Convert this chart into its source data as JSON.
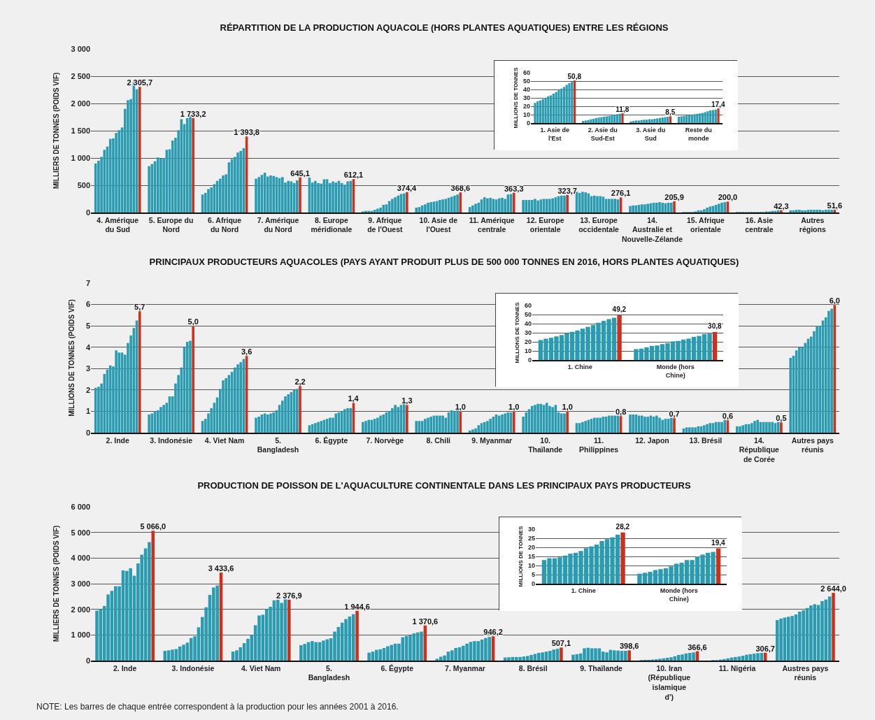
{
  "chart_data": [
    {
      "type": "bar",
      "title": "RÉPARTITION DE LA PRODUCTION AQUACOLE (HORS PLANTES AQUATIQUES) ENTRE LES RÉGIONS",
      "ylabel": "MILLIERS DE TONNES (POIDS VIF)",
      "grid": "y",
      "categories": [
        "4. Amérique du Sud",
        "5. Europe du Nord",
        "6. Afrique du Nord",
        "7. Amérique du Nord",
        "8. Europe méridionale",
        "9. Afrique de l'Ouest",
        "10. Asie de l'Ouest",
        "11. Amérique centrale",
        "12. Europe orientale",
        "13. Europe occidentale",
        "14. Australie et Nouvelle-Zélande",
        "15. Afrique orientale",
        "16. Asie centrale",
        "Autres régions"
      ],
      "ylim": [
        0,
        3000
      ],
      "yticks": [
        0,
        500,
        {
          "value": 1000,
          "label": "1 000"
        },
        {
          "value": 1500,
          "label": "1 500"
        },
        {
          "value": 2000,
          "label": "2 000"
        },
        {
          "value": 2500,
          "label": "2 500"
        },
        {
          "value": 3000,
          "label": "3 000"
        }
      ],
      "series": [
        {
          "color": "#2a9bb0",
          "values": [
            900,
            850,
            330,
            620,
            640,
            20,
            90,
            100,
            230,
            380,
            120,
            10,
            10,
            40
          ]
        },
        {
          "color": "#2a9bb0",
          "values": [
            950,
            890,
            360,
            650,
            550,
            30,
            100,
            130,
            230,
            360,
            130,
            10,
            10,
            40
          ]
        },
        {
          "color": "#2a9bb0",
          "values": [
            1020,
            940,
            430,
            690,
            580,
            30,
            130,
            160,
            230,
            380,
            130,
            10,
            10,
            50
          ]
        },
        {
          "color": "#2a9bb0",
          "values": [
            1150,
            1010,
            460,
            730,
            540,
            30,
            150,
            180,
            230,
            370,
            140,
            10,
            10,
            50
          ]
        },
        {
          "color": "#2a9bb0",
          "values": [
            1210,
            990,
            520,
            660,
            530,
            50,
            180,
            240,
            250,
            350,
            150,
            20,
            10,
            40
          ]
        },
        {
          "color": "#2a9bb0",
          "values": [
            1350,
            1000,
            580,
            680,
            610,
            70,
            190,
            280,
            220,
            300,
            150,
            40,
            10,
            40
          ]
        },
        {
          "color": "#2a9bb0",
          "values": [
            1360,
            1150,
            620,
            670,
            610,
            90,
            200,
            260,
            240,
            310,
            160,
            40,
            10,
            50
          ]
        },
        {
          "color": "#2a9bb0",
          "values": [
            1460,
            1160,
            680,
            650,
            540,
            140,
            210,
            270,
            250,
            300,
            170,
            60,
            10,
            50
          ]
        },
        {
          "color": "#2a9bb0",
          "values": [
            1510,
            1320,
            700,
            630,
            570,
            150,
            230,
            250,
            250,
            300,
            180,
            90,
            10,
            50
          ]
        },
        {
          "color": "#2a9bb0",
          "values": [
            1560,
            1370,
            920,
            650,
            550,
            210,
            240,
            240,
            250,
            290,
            180,
            110,
            10,
            50
          ]
        },
        {
          "color": "#2a9bb0",
          "values": [
            1900,
            1510,
            980,
            550,
            580,
            250,
            250,
            260,
            260,
            250,
            190,
            120,
            20,
            50
          ]
        },
        {
          "color": "#2a9bb0",
          "values": [
            2060,
            1710,
            1020,
            580,
            540,
            280,
            270,
            270,
            280,
            250,
            180,
            140,
            20,
            40
          ]
        },
        {
          "color": "#2a9bb0",
          "values": [
            2080,
            1620,
            1100,
            570,
            510,
            310,
            290,
            250,
            300,
            250,
            170,
            160,
            30,
            50
          ]
        },
        {
          "color": "#2a9bb0",
          "values": [
            2390,
            1730,
            1130,
            540,
            570,
            340,
            310,
            330,
            310,
            250,
            180,
            180,
            30,
            50
          ]
        },
        {
          "color": "#2a9bb0",
          "values": [
            2260,
            1780,
            1180,
            590,
            580,
            350,
            330,
            340,
            310,
            240,
            180,
            190,
            40,
            50
          ]
        },
        {
          "color": "#c8321e",
          "values": [
            2305.7,
            1733.2,
            1393.8,
            645.1,
            612.1,
            374.4,
            368.6,
            363.3,
            323.7,
            276.1,
            205.9,
            200.0,
            42.3,
            51.6
          ],
          "value_labels": [
            "2 305,7",
            "1 733,2",
            "1 393,8",
            "645,1",
            "612,1",
            "374,4",
            "368,6",
            "363,3",
            "323,7",
            "276,1",
            "205,9",
            "200,0",
            "42,3",
            "51,6"
          ]
        }
      ]
    },
    {
      "type": "bar",
      "ylabel": "MILLIONS DE TONNES",
      "grid": "y",
      "categories": [
        "1. Asie de l'Est",
        "2. Asie du Sud-Est",
        "3. Asie du Sud",
        "Reste du monde"
      ],
      "ylim": [
        0,
        60
      ],
      "yticks": [
        0,
        10,
        20,
        30,
        40,
        50,
        60
      ],
      "series": [
        {
          "color": "#2a9bb0",
          "values": [
            24,
            2.5,
            2,
            7.5
          ]
        },
        {
          "color": "#2a9bb0",
          "values": [
            26,
            3,
            2.5,
            8
          ]
        },
        {
          "color": "#2a9bb0",
          "values": [
            27,
            3.5,
            3,
            8.5
          ]
        },
        {
          "color": "#2a9bb0",
          "values": [
            28.5,
            4.5,
            3,
            9
          ]
        },
        {
          "color": "#2a9bb0",
          "values": [
            30,
            5,
            3.5,
            9.5
          ]
        },
        {
          "color": "#2a9bb0",
          "values": [
            32,
            6,
            4,
            10
          ]
        },
        {
          "color": "#2a9bb0",
          "values": [
            33,
            6.5,
            4,
            10.5
          ]
        },
        {
          "color": "#2a9bb0",
          "values": [
            35,
            7,
            4.5,
            11
          ]
        },
        {
          "color": "#2a9bb0",
          "values": [
            37,
            7.5,
            4.5,
            11.5
          ]
        },
        {
          "color": "#2a9bb0",
          "values": [
            39,
            8,
            5,
            12
          ]
        },
        {
          "color": "#2a9bb0",
          "values": [
            41,
            8.5,
            5.5,
            13
          ]
        },
        {
          "color": "#2a9bb0",
          "values": [
            43,
            9,
            6,
            14
          ]
        },
        {
          "color": "#2a9bb0",
          "values": [
            45.5,
            10,
            6.5,
            15
          ]
        },
        {
          "color": "#2a9bb0",
          "values": [
            47.5,
            10.5,
            7,
            15.5
          ]
        },
        {
          "color": "#2a9bb0",
          "values": [
            49,
            11,
            7.5,
            16
          ]
        },
        {
          "color": "#c8321e",
          "values": [
            50.8,
            11.8,
            8.5,
            17.4
          ],
          "value_labels": [
            "50,8",
            "11,8",
            "8,5",
            "17,4"
          ]
        }
      ]
    },
    {
      "type": "bar",
      "title": "PRINCIPAUX PRODUCTEURS AQUACOLES (PAYS AYANT PRODUIT PLUS DE 500 000 TONNES EN 2016, HORS PLANTES AQUATIQUES)",
      "ylabel": "MILLIONS DE TONNES (POIDS VIF)",
      "grid": "y",
      "categories": [
        "2. Inde",
        "3. Indonésie",
        "4. Viet Nam",
        "5. Bangladesh",
        "6. Égypte",
        "7. Norvège",
        "8. Chili",
        "9. Myanmar",
        "10. Thaïlande",
        "11. Philippines",
        "12. Japon",
        "13. Brésil",
        "14. République de Corée",
        "Autres pays réunis"
      ],
      "ylim": [
        0,
        7
      ],
      "yticks": [
        0,
        1,
        2,
        3,
        4,
        5,
        6,
        7
      ],
      "series": [
        {
          "color": "#2a9bb0",
          "values": [
            2.1,
            0.85,
            0.55,
            0.7,
            0.35,
            0.5,
            0.55,
            0.1,
            0.75,
            0.45,
            0.85,
            0.2,
            0.3,
            3.5
          ]
        },
        {
          "color": "#2a9bb0",
          "values": [
            2.15,
            0.9,
            0.65,
            0.75,
            0.4,
            0.55,
            0.55,
            0.15,
            0.95,
            0.45,
            0.85,
            0.25,
            0.3,
            3.6
          ]
        },
        {
          "color": "#2a9bb0",
          "values": [
            2.3,
            1.0,
            0.9,
            0.85,
            0.45,
            0.6,
            0.55,
            0.2,
            1.1,
            0.5,
            0.85,
            0.25,
            0.35,
            3.85
          ]
        },
        {
          "color": "#2a9bb0",
          "values": [
            2.75,
            1.05,
            1.15,
            0.9,
            0.5,
            0.6,
            0.65,
            0.35,
            1.25,
            0.55,
            0.8,
            0.25,
            0.4,
            4.0
          ]
        },
        {
          "color": "#2a9bb0",
          "values": [
            2.95,
            1.2,
            1.4,
            0.85,
            0.55,
            0.65,
            0.7,
            0.45,
            1.3,
            0.6,
            0.8,
            0.25,
            0.4,
            4.0
          ]
        },
        {
          "color": "#2a9bb0",
          "values": [
            3.15,
            1.3,
            1.65,
            0.9,
            0.6,
            0.7,
            0.75,
            0.5,
            1.35,
            0.65,
            0.75,
            0.3,
            0.45,
            4.2
          ]
        },
        {
          "color": "#2a9bb0",
          "values": [
            3.1,
            1.4,
            2.05,
            0.95,
            0.65,
            0.8,
            0.8,
            0.55,
            1.35,
            0.7,
            0.75,
            0.3,
            0.55,
            4.4
          ]
        },
        {
          "color": "#2a9bb0",
          "values": [
            3.85,
            1.7,
            2.45,
            1.05,
            0.7,
            0.85,
            0.8,
            0.65,
            1.3,
            0.7,
            0.8,
            0.35,
            0.6,
            4.5
          ]
        },
        {
          "color": "#2a9bb0",
          "values": [
            3.75,
            1.7,
            2.55,
            1.3,
            0.7,
            0.95,
            0.8,
            0.75,
            1.4,
            0.7,
            0.75,
            0.4,
            0.5,
            4.75
          ]
        },
        {
          "color": "#2a9bb0",
          "values": [
            3.75,
            2.3,
            2.7,
            1.5,
            0.9,
            1.0,
            0.8,
            0.85,
            1.25,
            0.75,
            0.8,
            0.45,
            0.5,
            5.0
          ]
        },
        {
          "color": "#2a9bb0",
          "values": [
            3.65,
            2.7,
            2.85,
            1.7,
            0.95,
            1.15,
            0.7,
            0.8,
            1.2,
            0.75,
            0.7,
            0.45,
            0.5,
            5.0
          ]
        },
        {
          "color": "#2a9bb0",
          "values": [
            4.2,
            3.05,
            3.05,
            1.8,
            1.0,
            1.3,
            0.95,
            0.85,
            1.3,
            0.8,
            0.6,
            0.5,
            0.5,
            5.25
          ]
        },
        {
          "color": "#2a9bb0",
          "values": [
            4.55,
            4.0,
            3.2,
            1.9,
            1.1,
            1.2,
            1.05,
            0.9,
            0.95,
            0.8,
            0.65,
            0.5,
            0.5,
            5.4
          ]
        },
        {
          "color": "#2a9bb0",
          "values": [
            4.9,
            4.25,
            3.3,
            2.0,
            1.15,
            1.3,
            1.0,
            0.95,
            0.9,
            0.8,
            0.65,
            0.5,
            0.45,
            5.7
          ]
        },
        {
          "color": "#2a9bb0",
          "values": [
            5.25,
            4.3,
            3.45,
            2.05,
            1.15,
            1.35,
            1.2,
            0.95,
            0.9,
            0.8,
            0.7,
            0.6,
            0.5,
            5.8
          ]
        },
        {
          "color": "#c8321e",
          "values": [
            5.7,
            5.0,
            3.6,
            2.2,
            1.4,
            1.3,
            1.0,
            1.0,
            1.0,
            0.8,
            0.7,
            0.6,
            0.5,
            6.0
          ],
          "value_labels": [
            "5,7",
            "5,0",
            "3,6",
            "2,2",
            "1,4",
            "1,3",
            "1,0",
            "1,0",
            "1,0",
            "0,8",
            "0,7",
            "0,6",
            "0,5",
            "6,0"
          ]
        }
      ]
    },
    {
      "type": "bar",
      "ylabel": "MILLIONS DE TONNES",
      "grid": "y",
      "categories": [
        "1. Chine",
        "Monde (hors Chine)"
      ],
      "ylim": [
        0,
        60
      ],
      "yticks": [
        0,
        10,
        20,
        30,
        40,
        50,
        60
      ],
      "series": [
        {
          "color": "#2a9bb0",
          "values": [
            22,
            12
          ]
        },
        {
          "color": "#2a9bb0",
          "values": [
            23.5,
            12.5
          ]
        },
        {
          "color": "#2a9bb0",
          "values": [
            24.5,
            14
          ]
        },
        {
          "color": "#2a9bb0",
          "values": [
            26,
            15.5
          ]
        },
        {
          "color": "#2a9bb0",
          "values": [
            27.5,
            16
          ]
        },
        {
          "color": "#2a9bb0",
          "values": [
            29.5,
            17.5
          ]
        },
        {
          "color": "#2a9bb0",
          "values": [
            31,
            18.5
          ]
        },
        {
          "color": "#2a9bb0",
          "values": [
            32.5,
            20.5
          ]
        },
        {
          "color": "#2a9bb0",
          "values": [
            34.5,
            21
          ]
        },
        {
          "color": "#2a9bb0",
          "values": [
            36.5,
            22.5
          ]
        },
        {
          "color": "#2a9bb0",
          "values": [
            38.5,
            23.5
          ]
        },
        {
          "color": "#2a9bb0",
          "values": [
            41,
            25.5
          ]
        },
        {
          "color": "#2a9bb0",
          "values": [
            43,
            26.5
          ]
        },
        {
          "color": "#2a9bb0",
          "values": [
            45,
            28.5
          ]
        },
        {
          "color": "#2a9bb0",
          "values": [
            46.5,
            29
          ]
        },
        {
          "color": "#c8321e",
          "values": [
            49.2,
            30.8
          ],
          "value_labels": [
            "49,2",
            "30,8"
          ]
        }
      ]
    },
    {
      "type": "bar",
      "title": "PRODUCTION DE POISSON DE L'AQUACULTURE CONTINENTALE DANS LES PRINCIPAUX PAYS PRODUCTEURS",
      "ylabel": "MILLIERS DE TONNES (POIDS VIF)",
      "grid": "y",
      "categories": [
        "2. Inde",
        "3. Indonésie",
        "4. Viet Nam",
        "5. Bangladesh",
        "6. Égypte",
        "7. Myanmar",
        "8. Brésil",
        "9. Thaïlande",
        "10. Iran (République islamique d')",
        "11. Nigéria",
        "Austres pays réunis"
      ],
      "ylim": [
        0,
        6000
      ],
      "yticks": [
        0,
        {
          "value": 1000,
          "label": "1 000"
        },
        {
          "value": 2000,
          "label": "2 000"
        },
        {
          "value": 3000,
          "label": "3 000"
        },
        {
          "value": 4000,
          "label": "4 000"
        },
        {
          "value": 5000,
          "label": "5 000"
        },
        {
          "value": 6000,
          "label": "6 000"
        }
      ],
      "annotations": [
        "NOTE: Les barres de chaque entrée correspondent à la production pour les années 2001 à 2016."
      ],
      "series": [
        {
          "color": "#2a9bb0",
          "values": [
            1950,
            380,
            350,
            600,
            310,
            70,
            120,
            230,
            20,
            null,
            1580
          ]
        },
        {
          "color": "#2a9bb0",
          "values": [
            2000,
            400,
            400,
            650,
            350,
            150,
            130,
            250,
            30,
            20,
            1640
          ]
        },
        {
          "color": "#2a9bb0",
          "values": [
            2130,
            430,
            520,
            720,
            420,
            200,
            140,
            280,
            30,
            20,
            1680
          ]
        },
        {
          "color": "#2a9bb0",
          "values": [
            2580,
            450,
            680,
            760,
            440,
            350,
            140,
            480,
            40,
            40,
            1710
          ]
        },
        {
          "color": "#2a9bb0",
          "values": [
            2720,
            550,
            850,
            720,
            490,
            400,
            140,
            500,
            50,
            60,
            1740
          ]
        },
        {
          "color": "#2a9bb0",
          "values": [
            2900,
            620,
            1000,
            720,
            560,
            490,
            160,
            480,
            70,
            90,
            1800
          ]
        },
        {
          "color": "#2a9bb0",
          "values": [
            2900,
            700,
            1380,
            780,
            610,
            520,
            180,
            480,
            90,
            120,
            1910
          ]
        },
        {
          "color": "#2a9bb0",
          "values": [
            3520,
            880,
            1760,
            830,
            660,
            580,
            220,
            480,
            110,
            140,
            1960
          ]
        },
        {
          "color": "#2a9bb0",
          "values": [
            3500,
            950,
            1790,
            870,
            660,
            660,
            260,
            350,
            130,
            160,
            2050
          ]
        },
        {
          "color": "#2a9bb0",
          "values": [
            3600,
            1300,
            2000,
            1130,
            910,
            730,
            300,
            320,
            170,
            190,
            2150
          ]
        },
        {
          "color": "#2a9bb0",
          "values": [
            3310,
            1700,
            2100,
            1310,
            960,
            760,
            320,
            420,
            220,
            230,
            2200
          ]
        },
        {
          "color": "#2a9bb0",
          "values": [
            3790,
            2080,
            2350,
            1480,
            980,
            760,
            350,
            400,
            240,
            250,
            2170
          ]
        },
        {
          "color": "#2a9bb0",
          "values": [
            4130,
            2560,
            2370,
            1620,
            1060,
            820,
            380,
            390,
            280,
            270,
            2320
          ]
        },
        {
          "color": "#2a9bb0",
          "values": [
            4380,
            2850,
            2250,
            1720,
            1100,
            880,
            430,
            380,
            300,
            290,
            2380
          ]
        },
        {
          "color": "#2a9bb0",
          "values": [
            4620,
            2930,
            2390,
            1810,
            1130,
            920,
            460,
            380,
            320,
            300,
            2500
          ]
        },
        {
          "color": "#c8321e",
          "values": [
            5066.0,
            3433.6,
            2376.9,
            1944.6,
            1370.6,
            946.2,
            507.1,
            398.6,
            366.6,
            306.7,
            2644.0
          ],
          "value_labels": [
            "5 066,0",
            "3 433,6",
            "2 376,9",
            "1 944,6",
            "1 370,6",
            "946,2",
            "507,1",
            "398,6",
            "366,6",
            "306,7",
            "2 644,0"
          ]
        }
      ]
    },
    {
      "type": "bar",
      "ylabel": "MILLIONS DE TONNES",
      "grid": "y",
      "categories": [
        "1. Chine",
        "Monde (hors Chine)"
      ],
      "ylim": [
        0,
        30
      ],
      "yticks": [
        0,
        5,
        10,
        15,
        20,
        25,
        30
      ],
      "series": [
        {
          "color": "#2a9bb0",
          "values": [
            13,
            5.5
          ]
        },
        {
          "color": "#2a9bb0",
          "values": [
            14,
            6
          ]
        },
        {
          "color": "#2a9bb0",
          "values": [
            14,
            6.5
          ]
        },
        {
          "color": "#2a9bb0",
          "values": [
            14.5,
            7.5
          ]
        },
        {
          "color": "#2a9bb0",
          "values": [
            15.5,
            8
          ]
        },
        {
          "color": "#2a9bb0",
          "values": [
            16.5,
            8.5
          ]
        },
        {
          "color": "#2a9bb0",
          "values": [
            17,
            9.5
          ]
        },
        {
          "color": "#2a9bb0",
          "values": [
            18,
            11
          ]
        },
        {
          "color": "#2a9bb0",
          "values": [
            19.5,
            11.5
          ]
        },
        {
          "color": "#2a9bb0",
          "values": [
            20.5,
            13
          ]
        },
        {
          "color": "#2a9bb0",
          "values": [
            21.5,
            13
          ]
        },
        {
          "color": "#2a9bb0",
          "values": [
            23.5,
            15
          ]
        },
        {
          "color": "#2a9bb0",
          "values": [
            24.5,
            16
          ]
        },
        {
          "color": "#2a9bb0",
          "values": [
            25.5,
            17
          ]
        },
        {
          "color": "#2a9bb0",
          "values": [
            27,
            17.5
          ]
        },
        {
          "color": "#c8321e",
          "values": [
            28.2,
            19.4
          ],
          "value_labels": [
            "28,2",
            "19,4"
          ]
        }
      ]
    }
  ]
}
